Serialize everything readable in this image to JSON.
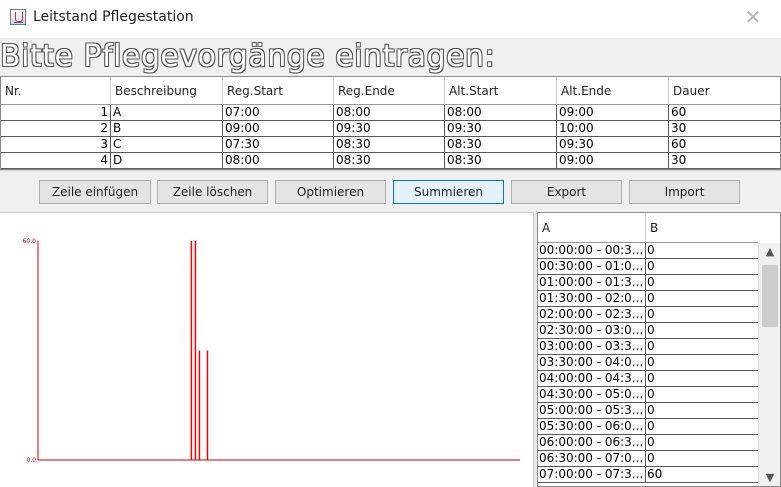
{
  "window": {
    "title": "Leitstand Pflegestation",
    "close_glyph": "✕"
  },
  "heading": "Bitte Pflegevorgänge eintragen:",
  "top_table": {
    "columns": [
      "Nr.",
      "Beschreibung",
      "Reg.Start",
      "Reg.Ende",
      "Alt.Start",
      "Alt.Ende",
      "Dauer"
    ],
    "rows": [
      [
        "1",
        "A",
        "07:00",
        "08:00",
        "08:00",
        "09:00",
        "60"
      ],
      [
        "2",
        "B",
        "09:00",
        "09:30",
        "09:30",
        "10:00",
        "30"
      ],
      [
        "3",
        "C",
        "07:30",
        "08:30",
        "08:30",
        "09:30",
        "60"
      ],
      [
        "4",
        "D",
        "08:00",
        "08:30",
        "08:30",
        "09:00",
        "30"
      ]
    ]
  },
  "buttons": {
    "add_row": "Zeile einfügen",
    "delete_row": "Zeile löschen",
    "optimize": "Optimieren",
    "sum": "Summieren",
    "export": "Export",
    "import": "Import"
  },
  "chart_data": {
    "type": "bar",
    "title": "",
    "xlabel": "",
    "ylabel": "",
    "ylim": [
      0,
      60
    ],
    "y_tick_labels": [
      "60.0",
      "0.0"
    ],
    "values": [
      0,
      0,
      0,
      0,
      0,
      0,
      0,
      0,
      0,
      0,
      0,
      0,
      0,
      0,
      0,
      0,
      0,
      0,
      0,
      0,
      0,
      0,
      0,
      0,
      0,
      0,
      0,
      0,
      0,
      0,
      0,
      0,
      0,
      0,
      0,
      0,
      0,
      0,
      60,
      60,
      30,
      0,
      30,
      0,
      0,
      0,
      0,
      0,
      0,
      0,
      0,
      0,
      0,
      0,
      0,
      0,
      0,
      0,
      0,
      0,
      0,
      0,
      0,
      0,
      0,
      0,
      0,
      0,
      0,
      0,
      0,
      0,
      0,
      0,
      0,
      0,
      0,
      0,
      0,
      0,
      0,
      0,
      0,
      0,
      0,
      0,
      0,
      0,
      0,
      0,
      0,
      0,
      0,
      0,
      0,
      0,
      0,
      0,
      0,
      0,
      0,
      0,
      0,
      0,
      0,
      0,
      0,
      0,
      0,
      0,
      0,
      0,
      0,
      0,
      0,
      0,
      0,
      0,
      0,
      0
    ],
    "color": "#ff0000",
    "grid": false
  },
  "right_table": {
    "columns": [
      "A",
      "B"
    ],
    "rows": [
      [
        "00:00:00 - 00:3...",
        "0"
      ],
      [
        "00:30:00 - 01:0...",
        "0"
      ],
      [
        "01:00:00 - 01:3...",
        "0"
      ],
      [
        "01:30:00 - 02:0...",
        "0"
      ],
      [
        "02:00:00 - 02:3...",
        "0"
      ],
      [
        "02:30:00 - 03:0...",
        "0"
      ],
      [
        "03:00:00 - 03:3...",
        "0"
      ],
      [
        "03:30:00 - 04:0...",
        "0"
      ],
      [
        "04:00:00 - 04:3...",
        "0"
      ],
      [
        "04:30:00 - 05:0...",
        "0"
      ],
      [
        "05:00:00 - 05:3...",
        "0"
      ],
      [
        "05:30:00 - 06:0...",
        "0"
      ],
      [
        "06:00:00 - 06:3...",
        "0"
      ],
      [
        "06:30:00 - 07:0...",
        "0"
      ],
      [
        "07:00:00 - 07:3...",
        "60"
      ]
    ]
  },
  "scrollbar": {
    "up_glyph": "▲",
    "down_glyph": "▼"
  },
  "colors": {
    "bar": "#ff0000",
    "axis": "#cc0000",
    "active_button_border": "#0078d7"
  }
}
